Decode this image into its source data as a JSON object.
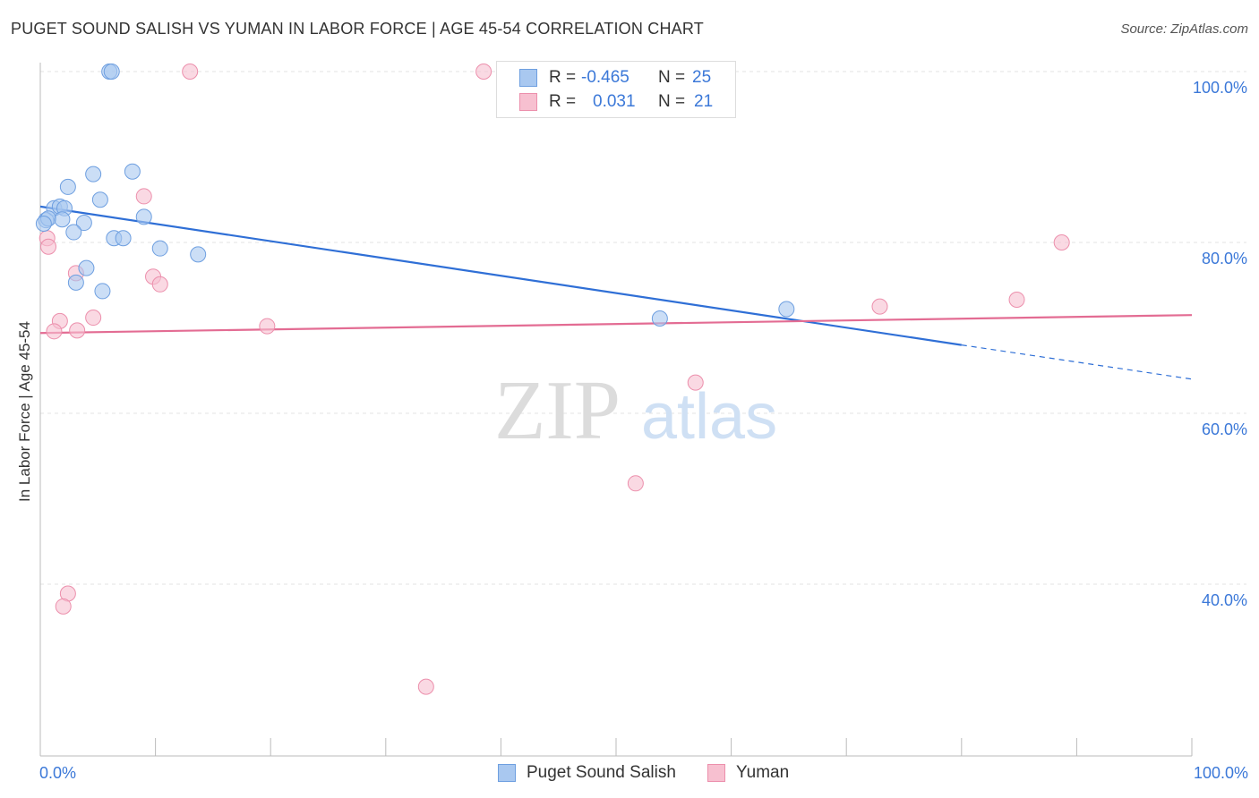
{
  "header": {
    "title": "PUGET SOUND SALISH VS YUMAN IN LABOR FORCE | AGE 45-54 CORRELATION CHART",
    "source": "Source: ZipAtlas.com"
  },
  "watermark": {
    "part1": "ZIP",
    "part2": "atlas"
  },
  "legend": {
    "rows": [
      {
        "r_label": "R =",
        "r_value": "-0.465",
        "n_label": "N =",
        "n_value": "25"
      },
      {
        "r_label": "R =",
        "r_value": "0.031",
        "n_label": "N =",
        "n_value": "21"
      }
    ]
  },
  "bottom_legend": {
    "series1": "Puget Sound Salish",
    "series2": "Yuman"
  },
  "colors": {
    "blue_fill": "#a9c8f0",
    "blue_stroke": "#6e9fe0",
    "blue_line": "#2f6fd6",
    "pink_fill": "#f7c0d0",
    "pink_stroke": "#ec8fac",
    "pink_line": "#e36c93",
    "axis_text": "#3b78d8",
    "grid": "#e3e3e3"
  },
  "chart_data": {
    "type": "scatter",
    "title": "PUGET SOUND SALISH VS YUMAN IN LABOR FORCE | AGE 45-54 CORRELATION CHART",
    "xlabel": "",
    "ylabel": "In Labor Force | Age 45-54",
    "xlim": [
      0,
      100
    ],
    "ylim": [
      18,
      102
    ],
    "x_tick_labels": [
      "0.0%",
      "100.0%"
    ],
    "y_ticks": [
      40,
      60,
      80,
      100
    ],
    "y_tick_labels": [
      "40.0%",
      "60.0%",
      "80.0%",
      "100.0%"
    ],
    "series": [
      {
        "name": "Puget Sound Salish",
        "R": -0.465,
        "N": 25,
        "trend": {
          "x0": 0,
          "y0": 84.2,
          "x1": 80,
          "y1": 68.0,
          "dashed_to_x": 100,
          "dashed_to_y": 64.0
        },
        "points": [
          [
            6.0,
            100.0
          ],
          [
            6.2,
            100.0
          ],
          [
            4.6,
            88.0
          ],
          [
            8.0,
            88.3
          ],
          [
            2.4,
            86.5
          ],
          [
            5.2,
            85.0
          ],
          [
            1.2,
            84.0
          ],
          [
            1.7,
            84.2
          ],
          [
            2.1,
            84.0
          ],
          [
            9.0,
            83.0
          ],
          [
            0.5,
            82.6
          ],
          [
            0.7,
            82.8
          ],
          [
            1.9,
            82.7
          ],
          [
            0.3,
            82.2
          ],
          [
            3.8,
            82.3
          ],
          [
            2.9,
            81.2
          ],
          [
            6.4,
            80.5
          ],
          [
            7.2,
            80.5
          ],
          [
            10.4,
            79.3
          ],
          [
            13.7,
            78.6
          ],
          [
            4.0,
            77.0
          ],
          [
            3.1,
            75.3
          ],
          [
            5.4,
            74.3
          ],
          [
            53.8,
            71.1
          ],
          [
            64.8,
            72.2
          ]
        ]
      },
      {
        "name": "Yuman",
        "R": 0.031,
        "N": 21,
        "trend": {
          "x0": 0,
          "y0": 69.4,
          "x1": 100,
          "y1": 71.5
        },
        "points": [
          [
            13.0,
            100.0
          ],
          [
            38.5,
            100.0
          ],
          [
            9.0,
            85.4
          ],
          [
            0.6,
            80.5
          ],
          [
            0.7,
            79.5
          ],
          [
            88.7,
            80.0
          ],
          [
            3.1,
            76.4
          ],
          [
            9.8,
            76.0
          ],
          [
            10.4,
            75.1
          ],
          [
            84.8,
            73.3
          ],
          [
            72.9,
            72.5
          ],
          [
            4.6,
            71.2
          ],
          [
            1.7,
            70.8
          ],
          [
            1.2,
            69.6
          ],
          [
            3.2,
            69.7
          ],
          [
            19.7,
            70.2
          ],
          [
            56.9,
            63.6
          ],
          [
            51.7,
            51.8
          ],
          [
            2.4,
            38.9
          ],
          [
            2.0,
            37.4
          ],
          [
            33.5,
            28.0
          ]
        ]
      }
    ]
  }
}
